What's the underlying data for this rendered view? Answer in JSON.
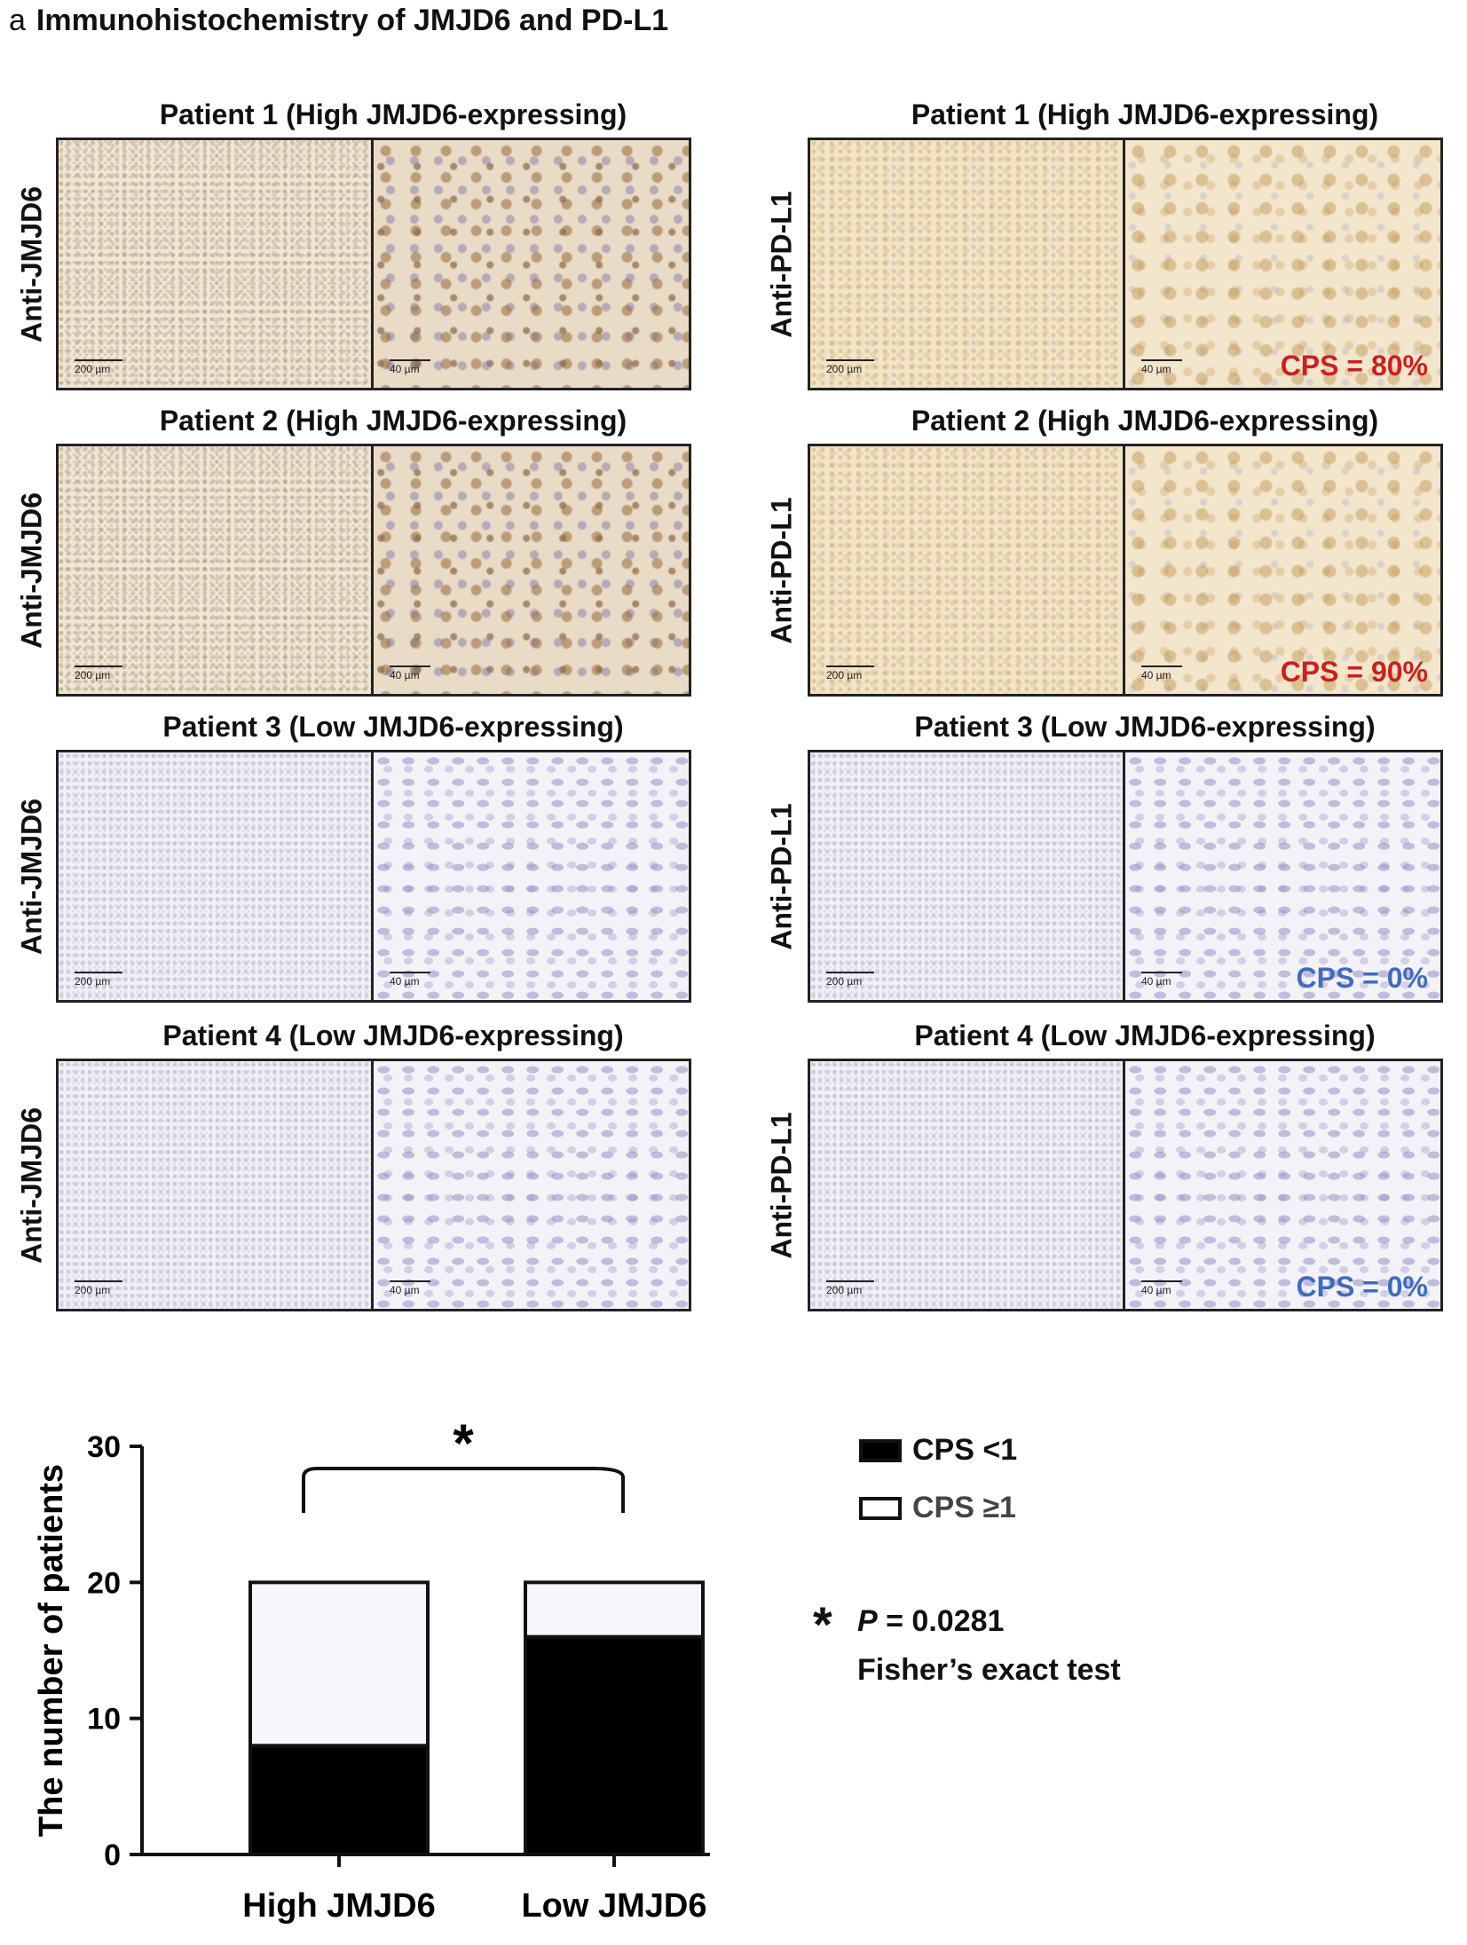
{
  "figure": {
    "panel_letter": "a",
    "heading": "Immunohistochemistry of JMJD6 and PD-L1"
  },
  "jmjd6_column": {
    "stain_label": "Anti-JMJD6",
    "panels": [
      {
        "title": "Patient 1 (High JMJD6-expressing)",
        "scale_low": "200 µm",
        "scale_high": "40 µm",
        "texture_low": "t-brown-lo",
        "texture_high": "t-brown-hi"
      },
      {
        "title": "Patient 2 (High JMJD6-expressing)",
        "scale_low": "200 µm",
        "scale_high": "40 µm",
        "texture_low": "t-brown-lo",
        "texture_high": "t-brown-hi"
      },
      {
        "title": "Patient 3 (Low JMJD6-expressing)",
        "scale_low": "200 µm",
        "scale_high": "40 µm",
        "texture_low": "t-blue-lo",
        "texture_high": "t-blue-hi"
      },
      {
        "title": "Patient 4 (Low JMJD6-expressing)",
        "scale_low": "200 µm",
        "scale_high": "40 µm",
        "texture_low": "t-blue-lo",
        "texture_high": "t-blue-hi"
      }
    ]
  },
  "pdl1_column": {
    "stain_label": "Anti-PD-L1",
    "panels": [
      {
        "title": "Patient 1 (High JMJD6-expressing)",
        "scale_low": "200 µm",
        "scale_high": "40 µm",
        "cps": "CPS = 80%",
        "cps_color": "#cc1f1f",
        "texture_low": "t-gold-lo",
        "texture_high": "t-gold-hi"
      },
      {
        "title": "Patient 2 (High JMJD6-expressing)",
        "scale_low": "200 µm",
        "scale_high": "40 µm",
        "cps": "CPS = 90%",
        "cps_color": "#cc1f1f",
        "texture_low": "t-gold-lo",
        "texture_high": "t-gold-hi"
      },
      {
        "title": "Patient 3 (Low JMJD6-expressing)",
        "scale_low": "200 µm",
        "scale_high": "40 µm",
        "cps": "CPS = 0%",
        "cps_color": "#3d6cc0",
        "texture_low": "t-blue-lo",
        "texture_high": "t-blue-hi"
      },
      {
        "title": "Patient 4 (Low JMJD6-expressing)",
        "scale_low": "200 µm",
        "scale_high": "40 µm",
        "cps": "CPS = 0%",
        "cps_color": "#3d6cc0",
        "texture_low": "t-blue-lo",
        "texture_high": "t-blue-hi"
      }
    ]
  },
  "chart_data": {
    "type": "bar",
    "stacked": true,
    "categories": [
      "High JMJD6",
      "Low JMJD6"
    ],
    "series": [
      {
        "name": "CPS <1",
        "values": [
          8,
          16
        ],
        "color": "#000000"
      },
      {
        "name": "CPS ≥1",
        "values": [
          12,
          4
        ],
        "color": "#f6f6fc"
      }
    ],
    "ylabel": "The number of patients",
    "ylim": [
      0,
      30
    ],
    "yticks": [
      0,
      10,
      20,
      30
    ],
    "significance_marker": "*",
    "legend": "right"
  },
  "stats": {
    "marker": "*",
    "p_label": "P",
    "p_value": " = 0.0281",
    "test": "Fisher’s exact test"
  }
}
